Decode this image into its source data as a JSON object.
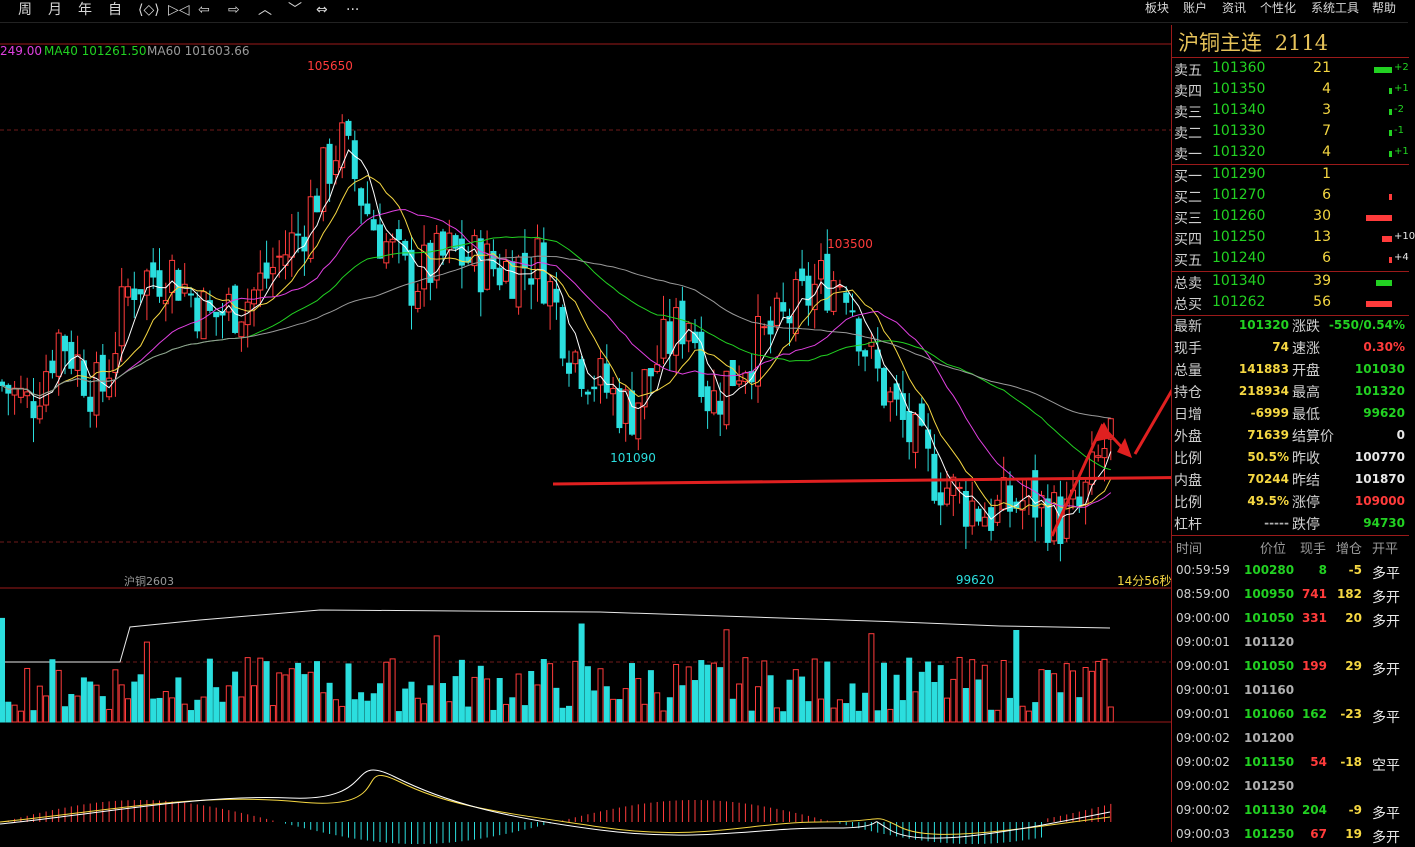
{
  "toolbar": {
    "left": [
      "周",
      "月",
      "年",
      "自",
      "⟨◇⟩",
      "▷◁",
      "⇦",
      "⇨",
      "︿",
      "﹀",
      "⇔",
      "···"
    ],
    "right": [
      "板块",
      "账户",
      "资讯",
      "个性化",
      "系统工具",
      "帮助"
    ]
  },
  "ma_legend": {
    "ma20": "249.00",
    "ma40": "MA40 101261.50",
    "ma60": "MA60 101603.66"
  },
  "chart_labels": {
    "high1": "105650",
    "high2": "103500",
    "low1": "101090",
    "low2": "99620",
    "contract": "沪铜2603",
    "countdown": "14分56秒"
  },
  "chart_data": {
    "type": "candlestick",
    "price_range": [
      99200,
      106500
    ],
    "annotated_levels": [
      105650,
      103500,
      101090,
      99620
    ],
    "moving_averages": [
      "MA40",
      "MA60"
    ]
  },
  "quote": {
    "title": "沪铜主连",
    "code": "2114",
    "asks": [
      {
        "label": "卖五",
        "price": "101360",
        "vol": "21",
        "chg": "+2",
        "chgq": 0.7
      },
      {
        "label": "卖四",
        "price": "101350",
        "vol": "4",
        "chg": "+1",
        "chgq": 0.1
      },
      {
        "label": "卖三",
        "price": "101340",
        "vol": "3",
        "chg": "-2",
        "chgq": 0.1
      },
      {
        "label": "卖二",
        "price": "101330",
        "vol": "7",
        "chg": "-1",
        "chgq": 0.1
      },
      {
        "label": "卖一",
        "price": "101320",
        "vol": "4",
        "chg": "+1",
        "chgq": 0.1
      }
    ],
    "bids": [
      {
        "label": "买一",
        "price": "101290",
        "vol": "1",
        "chg": "",
        "chgq": 0
      },
      {
        "label": "买二",
        "price": "101270",
        "vol": "6",
        "chg": "",
        "chgq": 0.1
      },
      {
        "label": "买三",
        "price": "101260",
        "vol": "30",
        "chg": "",
        "chgq": 1.0
      },
      {
        "label": "买四",
        "price": "101250",
        "vol": "13",
        "chg": "+10",
        "chgq": 0.4
      },
      {
        "label": "买五",
        "price": "101240",
        "vol": "6",
        "chg": "+4",
        "chgq": 0.1
      }
    ],
    "total_sell": {
      "label": "总卖",
      "price": "101340",
      "vol": "39",
      "q": 0.6
    },
    "total_buy": {
      "label": "总买",
      "price": "101262",
      "vol": "56",
      "q": 1.0
    },
    "stats_left": [
      {
        "label": "最新",
        "value": "101320",
        "color": "green"
      },
      {
        "label": "现手",
        "value": "74",
        "color": "yellow"
      },
      {
        "label": "总量",
        "value": "141883",
        "color": "yellow"
      },
      {
        "label": "持仓",
        "value": "218934",
        "color": "yellow"
      },
      {
        "label": "日增",
        "value": "-6999",
        "color": "yellow"
      },
      {
        "label": "外盘",
        "value": "71639",
        "color": "yellow"
      },
      {
        "label": "比例",
        "value": "50.5%",
        "color": "yellow"
      },
      {
        "label": "内盘",
        "value": "70244",
        "color": "yellow"
      },
      {
        "label": "比例",
        "value": "49.5%",
        "color": "yellow"
      },
      {
        "label": "杠杆",
        "value": "-----",
        "color": "gray"
      }
    ],
    "stats_right": [
      {
        "label": "涨跌",
        "value": "-550/0.54%",
        "color": "green"
      },
      {
        "label": "速涨",
        "value": "0.30%",
        "color": "red"
      },
      {
        "label": "开盘",
        "value": "101030",
        "color": "green"
      },
      {
        "label": "最高",
        "value": "101320",
        "color": "green"
      },
      {
        "label": "最低",
        "value": "99620",
        "color": "green"
      },
      {
        "label": "结算价",
        "value": "0",
        "color": "white"
      },
      {
        "label": "昨收",
        "value": "100770",
        "color": "white"
      },
      {
        "label": "昨结",
        "value": "101870",
        "color": "white"
      },
      {
        "label": "涨停",
        "value": "109000",
        "color": "red"
      },
      {
        "label": "跌停",
        "value": "94730",
        "color": "green"
      }
    ],
    "trade_headers": [
      "时间",
      "价位",
      "现手",
      "增仓",
      "开平"
    ],
    "trades": [
      {
        "time": "00:59:59",
        "price": "100280",
        "hand": "8",
        "add": "-5",
        "type": "多平",
        "pc": "green",
        "hc": "green"
      },
      {
        "time": "08:59:00",
        "price": "100950",
        "hand": "741",
        "add": "182",
        "type": "多开",
        "pc": "green",
        "hc": "red"
      },
      {
        "time": "09:00:00",
        "price": "101050",
        "hand": "331",
        "add": "20",
        "type": "多开",
        "pc": "green",
        "hc": "red"
      },
      {
        "time": "09:00:01",
        "price": "101120",
        "hand": "",
        "add": "",
        "type": "",
        "pc": "gray",
        "hc": "gray"
      },
      {
        "time": "09:00:01",
        "price": "101050",
        "hand": "199",
        "add": "29",
        "type": "多开",
        "pc": "green",
        "hc": "red"
      },
      {
        "time": "09:00:01",
        "price": "101160",
        "hand": "",
        "add": "",
        "type": "",
        "pc": "gray",
        "hc": "gray"
      },
      {
        "time": "09:00:01",
        "price": "101060",
        "hand": "162",
        "add": "-23",
        "type": "多平",
        "pc": "green",
        "hc": "green"
      },
      {
        "time": "09:00:02",
        "price": "101200",
        "hand": "",
        "add": "",
        "type": "",
        "pc": "gray",
        "hc": "gray"
      },
      {
        "time": "09:00:02",
        "price": "101150",
        "hand": "54",
        "add": "-18",
        "type": "空平",
        "pc": "green",
        "hc": "red"
      },
      {
        "time": "09:00:02",
        "price": "101250",
        "hand": "",
        "add": "",
        "type": "",
        "pc": "gray",
        "hc": "gray"
      },
      {
        "time": "09:00:02",
        "price": "101130",
        "hand": "204",
        "add": "-9",
        "type": "多平",
        "pc": "green",
        "hc": "green"
      },
      {
        "time": "09:00:03",
        "price": "101250",
        "hand": "67",
        "add": "19",
        "type": "多开",
        "pc": "green",
        "hc": "red"
      }
    ]
  }
}
